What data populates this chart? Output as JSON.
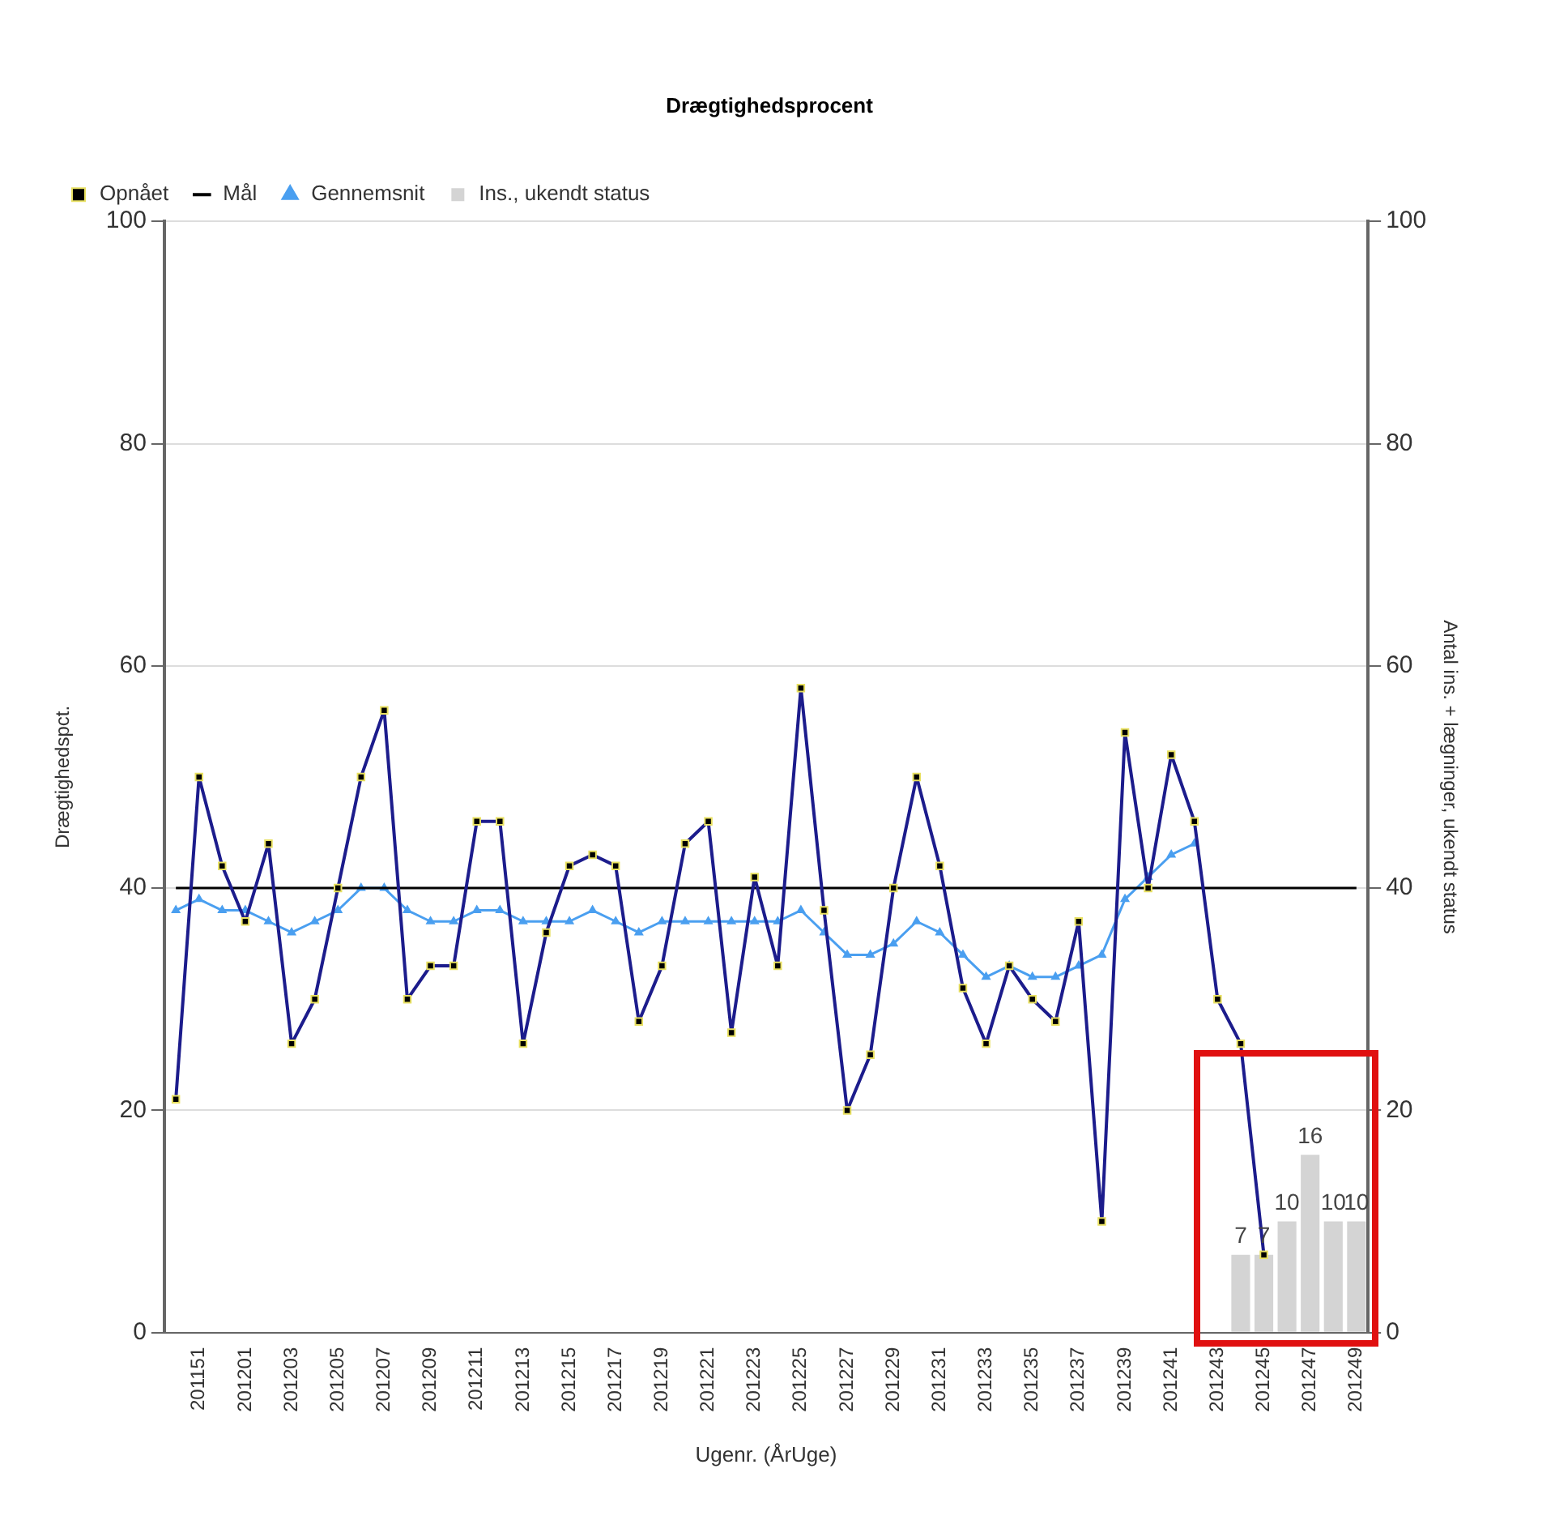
{
  "chart_data": {
    "type": "line",
    "title": "Drægtighedsprocent",
    "xlabel": "Ugenr. (ÅrUge)",
    "ylabel": "Drægtighedspct.",
    "y2label": "Antal ins. + lægninger, ukendt status",
    "categories": [
      null,
      "201151",
      null,
      "201201",
      null,
      "201203",
      null,
      "201205",
      null,
      "201207",
      null,
      "201209",
      null,
      "201211",
      null,
      "201213",
      null,
      "201215",
      null,
      "201217",
      null,
      "201219",
      null,
      "201221",
      null,
      "201223",
      null,
      "201225",
      null,
      "201227",
      null,
      "201229",
      null,
      "201231",
      null,
      "201233",
      null,
      "201235",
      null,
      "201237",
      null,
      "201239",
      null,
      "201241",
      null,
      "201243",
      null,
      "201245",
      null,
      "201247",
      null,
      "201249"
    ],
    "series": [
      {
        "name": "Opnået",
        "color": "#1c1c8c",
        "marker": "square",
        "values": [
          21,
          50,
          42,
          37,
          44,
          26,
          30,
          40,
          50,
          56,
          30,
          33,
          33,
          46,
          46,
          26,
          36,
          42,
          43,
          42,
          28,
          33,
          44,
          46,
          27,
          41,
          33,
          58,
          38,
          20,
          25,
          40,
          50,
          42,
          31,
          26,
          33,
          30,
          28,
          37,
          10,
          54,
          40,
          52,
          46,
          30,
          26,
          7,
          null,
          null,
          null,
          null
        ]
      },
      {
        "name": "Mål",
        "color": "#000000",
        "marker": "none",
        "values": [
          40,
          40,
          40,
          40,
          40,
          40,
          40,
          40,
          40,
          40,
          40,
          40,
          40,
          40,
          40,
          40,
          40,
          40,
          40,
          40,
          40,
          40,
          40,
          40,
          40,
          40,
          40,
          40,
          40,
          40,
          40,
          40,
          40,
          40,
          40,
          40,
          40,
          40,
          40,
          40,
          40,
          40,
          40,
          40,
          40,
          40,
          40,
          40,
          40,
          40,
          40,
          40
        ]
      },
      {
        "name": "Gennemsnit",
        "color": "#4a9ff0",
        "marker": "triangle",
        "values": [
          38,
          39,
          38,
          38,
          37,
          36,
          37,
          38,
          40,
          40,
          38,
          37,
          37,
          38,
          38,
          37,
          37,
          37,
          38,
          37,
          36,
          37,
          37,
          37,
          37,
          37,
          37,
          38,
          36,
          34,
          34,
          35,
          37,
          36,
          34,
          32,
          33,
          32,
          32,
          33,
          34,
          39,
          41,
          43,
          44,
          null,
          null,
          null,
          null,
          null,
          null,
          null
        ]
      },
      {
        "name": "Ins., ukendt status",
        "type": "bar",
        "axis": "y2",
        "color": "#d4d4d4",
        "values": [
          null,
          null,
          null,
          null,
          null,
          null,
          null,
          null,
          null,
          null,
          null,
          null,
          null,
          null,
          null,
          null,
          null,
          null,
          null,
          null,
          null,
          null,
          null,
          null,
          null,
          null,
          null,
          null,
          null,
          null,
          null,
          null,
          null,
          null,
          null,
          null,
          null,
          null,
          null,
          null,
          null,
          null,
          null,
          null,
          null,
          null,
          7,
          7,
          10,
          16,
          10,
          10
        ],
        "value_labels": [
          null,
          null,
          null,
          null,
          null,
          null,
          null,
          null,
          null,
          null,
          null,
          null,
          null,
          null,
          null,
          null,
          null,
          null,
          null,
          null,
          null,
          null,
          null,
          null,
          null,
          null,
          null,
          null,
          null,
          null,
          null,
          null,
          null,
          null,
          null,
          null,
          null,
          null,
          null,
          null,
          null,
          null,
          null,
          null,
          null,
          null,
          "7",
          "7",
          "10",
          "16",
          "10",
          "10"
        ]
      }
    ],
    "ylim": [
      0,
      100
    ],
    "yticks": [
      0,
      20,
      40,
      60,
      80,
      100
    ],
    "y2lim": [
      0,
      100
    ],
    "y2ticks": [
      0,
      20,
      40,
      60,
      80,
      100
    ],
    "grid": "y",
    "legend": "top left"
  }
}
